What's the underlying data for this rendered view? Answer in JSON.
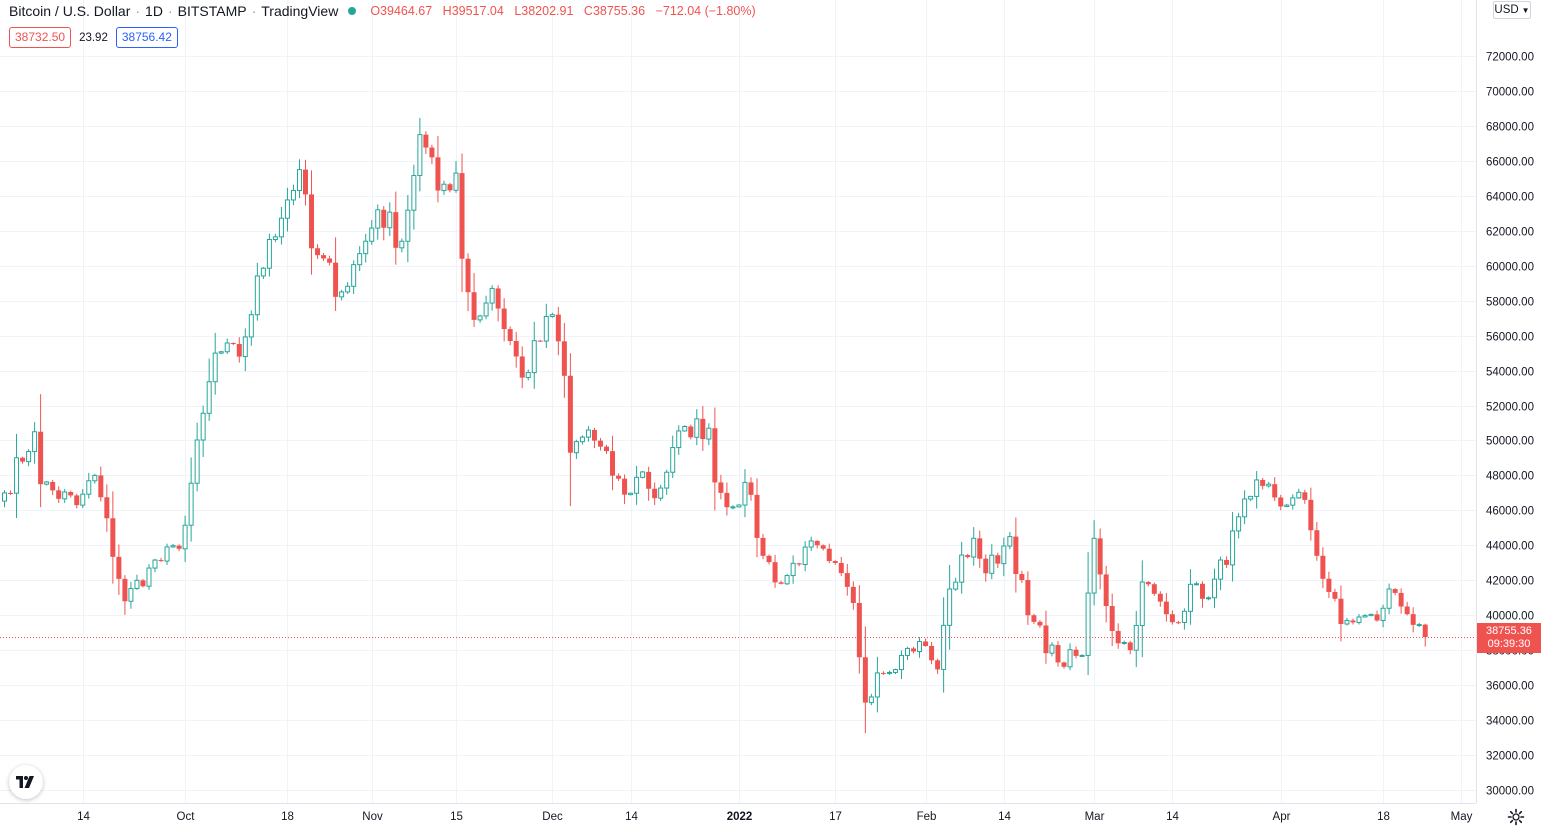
{
  "header": {
    "symbol": "Bitcoin / U.S. Dollar",
    "interval": "1D",
    "exchange": "BITSTAMP",
    "source": "TradingView",
    "ohlc": {
      "o_key": "O",
      "o": "39464.67",
      "h_key": "H",
      "h": "39517.04",
      "l_key": "L",
      "l": "38202.91",
      "c_key": "C",
      "c": "38755.36",
      "change": "−712.04 (−1.80%)"
    },
    "sell_price": "38732.50",
    "spread": "23.92",
    "buy_price": "38756.42"
  },
  "currency_label": "USD",
  "last_price_label": {
    "price": "38755.36",
    "countdown": "09:39:30"
  },
  "colors": {
    "up": "#26a69a",
    "down": "#ef5350",
    "grid": "#f0f3fa",
    "text": "#131722"
  },
  "icons": {
    "logo": "tradingview-logo-icon",
    "settings": "gear-icon",
    "currency": "chevron-down-icon"
  },
  "chart_data": {
    "type": "candlestick",
    "interval": "1D",
    "symbol": "BTCUSD",
    "y_ticks": [
      "30000.00",
      "32000.00",
      "34000.00",
      "36000.00",
      "38000.00",
      "40000.00",
      "42000.00",
      "44000.00",
      "46000.00",
      "48000.00",
      "50000.00",
      "52000.00",
      "54000.00",
      "56000.00",
      "58000.00",
      "60000.00",
      "62000.00",
      "64000.00",
      "66000.00",
      "68000.00",
      "70000.00",
      "72000.00"
    ],
    "x_ticks": [
      {
        "label": "14",
        "date": "2021-09-14"
      },
      {
        "label": "Oct",
        "date": "2021-10-01"
      },
      {
        "label": "18",
        "date": "2021-10-18"
      },
      {
        "label": "Nov",
        "date": "2021-11-01"
      },
      {
        "label": "15",
        "date": "2021-11-15"
      },
      {
        "label": "Dec",
        "date": "2021-12-01"
      },
      {
        "label": "14",
        "date": "2021-12-14"
      },
      {
        "label": "2022",
        "date": "2022-01-01",
        "bold": true
      },
      {
        "label": "17",
        "date": "2022-01-17"
      },
      {
        "label": "Feb",
        "date": "2022-02-01"
      },
      {
        "label": "14",
        "date": "2022-02-14"
      },
      {
        "label": "Mar",
        "date": "2022-03-01"
      },
      {
        "label": "14",
        "date": "2022-03-14"
      },
      {
        "label": "Apr",
        "date": "2022-04-01"
      },
      {
        "label": "18",
        "date": "2022-04-18"
      },
      {
        "label": "May",
        "date": "2022-05-01"
      }
    ],
    "last_price": 38755.36,
    "anchors": [
      {
        "date": "2021-09-01",
        "price": 47000
      },
      {
        "date": "2021-09-06",
        "price": 50500
      },
      {
        "date": "2021-09-07",
        "price": 47500
      },
      {
        "date": "2021-09-13",
        "price": 46300
      },
      {
        "date": "2021-09-16",
        "price": 48000
      },
      {
        "date": "2021-09-21",
        "price": 40800
      },
      {
        "date": "2021-09-25",
        "price": 42700
      },
      {
        "date": "2021-09-30",
        "price": 43800
      },
      {
        "date": "2021-10-06",
        "price": 55000
      },
      {
        "date": "2021-10-10",
        "price": 54800
      },
      {
        "date": "2021-10-15",
        "price": 61500
      },
      {
        "date": "2021-10-20",
        "price": 65500
      },
      {
        "date": "2021-10-22",
        "price": 61000
      },
      {
        "date": "2021-10-27",
        "price": 58500
      },
      {
        "date": "2021-10-31",
        "price": 61400
      },
      {
        "date": "2021-11-02",
        "price": 63200
      },
      {
        "date": "2021-11-06",
        "price": 61400
      },
      {
        "date": "2021-11-09",
        "price": 67500
      },
      {
        "date": "2021-11-12",
        "price": 64300
      },
      {
        "date": "2021-11-15",
        "price": 65300
      },
      {
        "date": "2021-11-16",
        "price": 60400
      },
      {
        "date": "2021-11-18",
        "price": 56900
      },
      {
        "date": "2021-11-21",
        "price": 58700
      },
      {
        "date": "2021-11-26",
        "price": 53600
      },
      {
        "date": "2021-12-01",
        "price": 57200
      },
      {
        "date": "2021-12-03",
        "price": 53700
      },
      {
        "date": "2021-12-04",
        "price": 49300
      },
      {
        "date": "2021-12-07",
        "price": 50600
      },
      {
        "date": "2021-12-13",
        "price": 46900
      },
      {
        "date": "2021-12-16",
        "price": 48200
      },
      {
        "date": "2021-12-18",
        "price": 46700
      },
      {
        "date": "2021-12-23",
        "price": 50800
      },
      {
        "date": "2021-12-27",
        "price": 50700
      },
      {
        "date": "2021-12-28",
        "price": 47600
      },
      {
        "date": "2021-12-31",
        "price": 46200
      },
      {
        "date": "2022-01-02",
        "price": 47600
      },
      {
        "date": "2022-01-05",
        "price": 43400
      },
      {
        "date": "2022-01-08",
        "price": 41800
      },
      {
        "date": "2022-01-12",
        "price": 43900
      },
      {
        "date": "2022-01-16",
        "price": 43100
      },
      {
        "date": "2022-01-20",
        "price": 40700
      },
      {
        "date": "2022-01-22",
        "price": 35000
      },
      {
        "date": "2022-01-24",
        "price": 36700
      },
      {
        "date": "2022-01-28",
        "price": 37700
      },
      {
        "date": "2022-01-31",
        "price": 38500
      },
      {
        "date": "2022-02-03",
        "price": 36900
      },
      {
        "date": "2022-02-05",
        "price": 41500
      },
      {
        "date": "2022-02-09",
        "price": 44400
      },
      {
        "date": "2022-02-11",
        "price": 42400
      },
      {
        "date": "2022-02-15",
        "price": 44500
      },
      {
        "date": "2022-02-18",
        "price": 40000
      },
      {
        "date": "2022-02-23",
        "price": 37300
      },
      {
        "date": "2022-02-27",
        "price": 37700
      },
      {
        "date": "2022-03-01",
        "price": 44400
      },
      {
        "date": "2022-03-04",
        "price": 39100
      },
      {
        "date": "2022-03-07",
        "price": 38000
      },
      {
        "date": "2022-03-09",
        "price": 41900
      },
      {
        "date": "2022-03-14",
        "price": 39600
      },
      {
        "date": "2022-03-18",
        "price": 41800
      },
      {
        "date": "2022-03-20",
        "price": 41000
      },
      {
        "date": "2022-03-27",
        "price": 46800
      },
      {
        "date": "2022-03-29",
        "price": 47400
      },
      {
        "date": "2022-04-02",
        "price": 46300
      },
      {
        "date": "2022-04-05",
        "price": 46600
      },
      {
        "date": "2022-04-07",
        "price": 43400
      },
      {
        "date": "2022-04-11",
        "price": 39500
      },
      {
        "date": "2022-04-14",
        "price": 39900
      },
      {
        "date": "2022-04-17",
        "price": 39700
      },
      {
        "date": "2022-04-19",
        "price": 41500
      },
      {
        "date": "2022-04-21",
        "price": 40500
      },
      {
        "date": "2022-04-24",
        "price": 39464.67
      },
      {
        "date": "2022-04-25",
        "price": 38755.36
      }
    ],
    "last_candle": {
      "date": "2022-04-25",
      "open": 39464.67,
      "high": 39517.04,
      "low": 38202.91,
      "close": 38755.36
    }
  }
}
